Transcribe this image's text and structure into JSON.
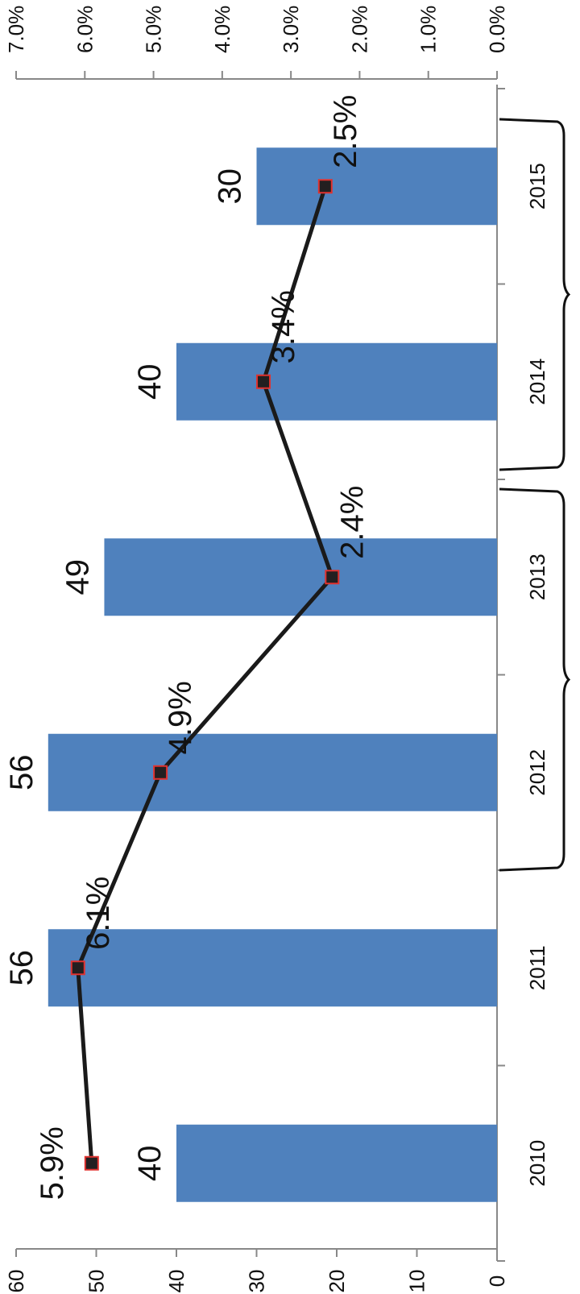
{
  "chart_data": {
    "type": "bar",
    "orientation": "rotated 90° clockwise",
    "categories": [
      "2010",
      "2011",
      "2012",
      "2013",
      "2014",
      "2015"
    ],
    "series": [
      {
        "values": [
          40,
          56,
          56,
          49,
          40,
          30
        ],
        "axis": "left",
        "color": "#4f81bd"
      },
      {
        "type": "line",
        "values": [
          5.9,
          6.1,
          4.9,
          2.4,
          3.4,
          2.5
        ],
        "axis": "right",
        "color": "#1a1a1a",
        "marker_color": "#231f20",
        "marker_edge": "#e0322f"
      }
    ],
    "bar_labels": [
      "40",
      "56",
      "56",
      "49",
      "40",
      "30"
    ],
    "line_labels": [
      "5.9%",
      "6.1%",
      "4.9%",
      "2.4%",
      "3.4%",
      "2.5%"
    ],
    "left_axis": {
      "range": [
        0,
        60
      ],
      "ticks": [
        "0",
        "10",
        "20",
        "30",
        "40",
        "50",
        "60"
      ]
    },
    "right_axis": {
      "range": [
        0,
        7
      ],
      "ticks": [
        "0.0%",
        "1.0%",
        "2.0%",
        "3.0%",
        "4.0%",
        "5.0%",
        "6.0%",
        "7.0%"
      ]
    },
    "grid": false,
    "legend": "none",
    "brackets": [
      {
        "from": "2011/2012",
        "to": "2013/2014"
      },
      {
        "from": "2013/2014",
        "to": "2015"
      }
    ]
  }
}
